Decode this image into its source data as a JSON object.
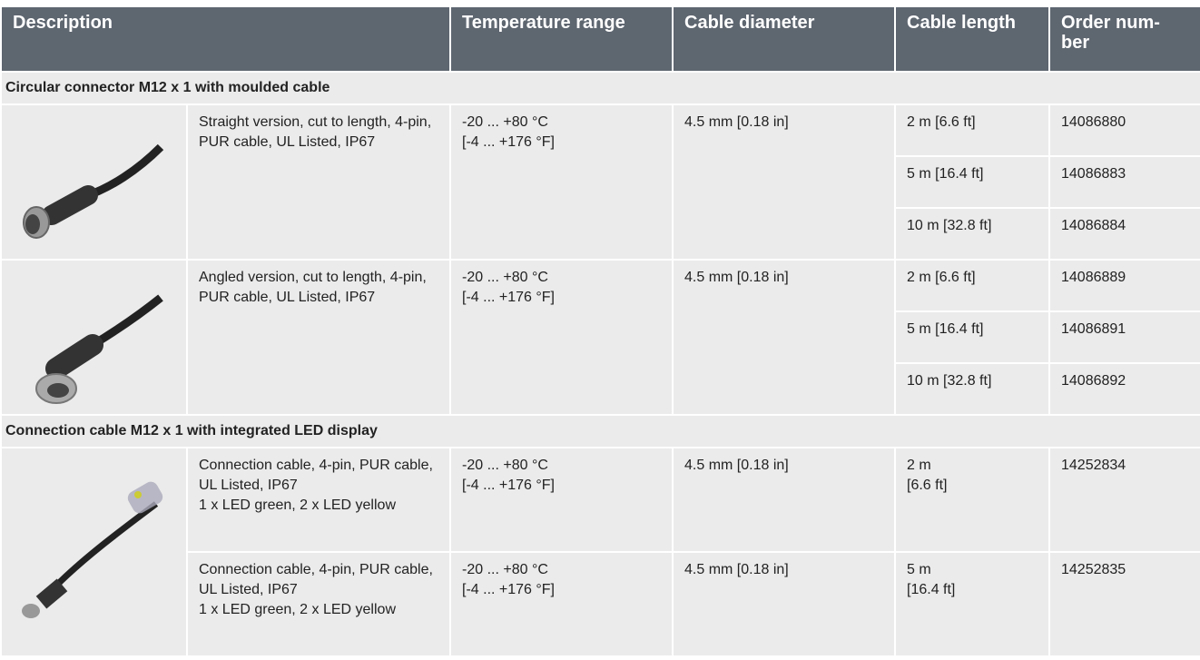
{
  "header": {
    "columns": [
      "Description",
      "Temperature range",
      "Cable diameter",
      "Cable length",
      "Order num-\nber"
    ]
  },
  "sections": [
    {
      "title": "Circular connector M12 x 1 with moulded cable",
      "groups": [
        {
          "description": "Straight version, cut to length, 4-pin, PUR cable, UL Listed, IP67",
          "temperature": "-20 ... +80 °C\n[-4 ... +176 °F]",
          "diameter": "4.5 mm [0.18 in]",
          "variants": [
            {
              "length": "2 m [6.6 ft]",
              "order": "14086880"
            },
            {
              "length": "5 m [16.4 ft]",
              "order": "14086883"
            },
            {
              "length": "10 m [32.8 ft]",
              "order": "14086884"
            }
          ]
        },
        {
          "description": "Angled version, cut to length, 4-pin, PUR cable, UL Listed, IP67",
          "temperature": "-20 ... +80 °C\n[-4 ... +176 °F]",
          "diameter": "4.5 mm [0.18 in]",
          "variants": [
            {
              "length": "2 m [6.6 ft]",
              "order": "14086889"
            },
            {
              "length": "5 m [16.4 ft]",
              "order": "14086891"
            },
            {
              "length": "10 m [32.8 ft]",
              "order": "14086892"
            }
          ]
        }
      ]
    },
    {
      "title": "Connection cable M12 x 1 with integrated LED display",
      "groups": [
        {
          "description": "Connection cable, 4-pin, PUR cable, UL Listed, IP67\n1 x LED green, 2 x LED yellow",
          "temperature": "-20 ... +80 °C\n[-4 ... +176 °F]",
          "diameter": "4.5 mm [0.18 in]",
          "variants": [
            {
              "length": "2 m\n[6.6 ft]",
              "order": "14252834"
            }
          ]
        },
        {
          "description": "Connection cable, 4-pin, PUR cable, UL Listed, IP67\n1 x LED green, 2 x LED yellow",
          "temperature": "-20 ... +80 °C\n[-4 ... +176 °F]",
          "diameter": "4.5 mm [0.18 in]",
          "variants": [
            {
              "length": "5 m\n[16.4 ft]",
              "order": "14252835"
            }
          ]
        }
      ]
    }
  ]
}
